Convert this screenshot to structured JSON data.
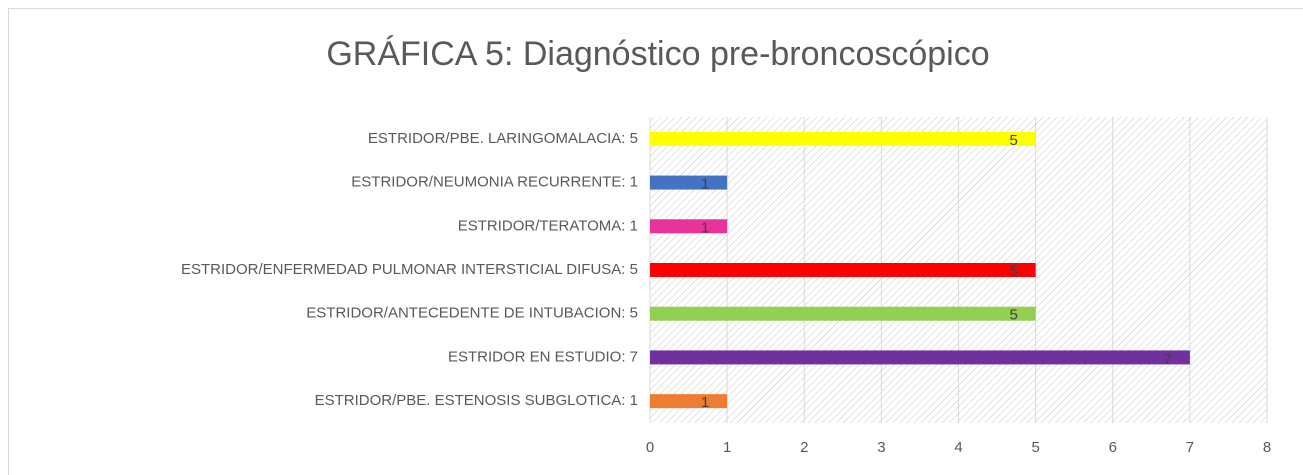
{
  "chart_data": {
    "type": "barh",
    "title": "GRÁFICA 5: Diagnóstico pre-broncoscópico",
    "categories": [
      "ESTRIDOR/PBE. LARINGOMALACIA: 5",
      "ESTRIDOR/NEUMONIA RECURRENTE: 1",
      "ESTRIDOR/TERATOMA: 1",
      "ESTRIDOR/ENFERMEDAD PULMONAR INTERSTICIAL DIFUSA: 5",
      "ESTRIDOR/ANTECEDENTE DE INTUBACION: 5",
      "ESTRIDOR EN ESTUDIO: 7",
      "ESTRIDOR/PBE. ESTENOSIS SUBGLOTICA: 1"
    ],
    "values": [
      5,
      1,
      1,
      5,
      5,
      7,
      1
    ],
    "colors": [
      "#ffff00",
      "#4472c4",
      "#e8339a",
      "#ff0000",
      "#92d050",
      "#7030a0",
      "#ed7d31"
    ],
    "xlim": [
      0,
      8
    ],
    "xticks": [
      0,
      1,
      2,
      3,
      4,
      5,
      6,
      7,
      8
    ],
    "grid": true
  }
}
